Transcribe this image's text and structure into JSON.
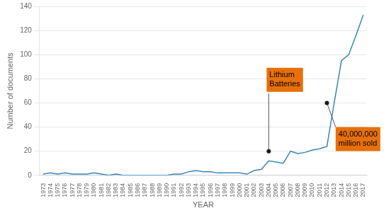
{
  "chart_data": {
    "type": "line",
    "x": [
      1973,
      1974,
      1975,
      1976,
      1977,
      1978,
      1979,
      1980,
      1981,
      1982,
      1983,
      1984,
      1985,
      1986,
      1987,
      1988,
      1989,
      1990,
      1991,
      1992,
      1993,
      1994,
      1995,
      1996,
      1997,
      1998,
      1999,
      2000,
      2001,
      2002,
      2003,
      2004,
      2005,
      2006,
      2007,
      2008,
      2009,
      2010,
      2011,
      2012,
      2013,
      2014,
      2015,
      2016,
      2017
    ],
    "values": [
      1,
      2,
      1,
      2,
      1,
      1,
      1,
      2,
      1,
      0,
      1,
      0,
      0,
      0,
      0,
      0,
      0,
      0,
      1,
      1,
      3,
      4,
      3,
      3,
      2,
      2,
      2,
      2,
      1,
      4,
      5,
      12,
      11,
      10,
      20,
      18,
      19,
      21,
      22,
      24,
      60,
      95,
      100,
      116,
      133
    ],
    "color": "#3A86B8",
    "xlabel": "YEAR",
    "ylabel": "Number of documents",
    "xlim": [
      1972.5,
      2017.5
    ],
    "xticks": [
      1973,
      1974,
      1975,
      1976,
      1977,
      1978,
      1979,
      1980,
      1981,
      1982,
      1983,
      1984,
      1985,
      1986,
      1987,
      1988,
      1989,
      1990,
      1991,
      1992,
      1993,
      1994,
      1995,
      1996,
      1997,
      1998,
      1999,
      2000,
      2001,
      2002,
      2003,
      2004,
      2005,
      2006,
      2007,
      2008,
      2009,
      2010,
      2011,
      2012,
      2013,
      2014,
      2015,
      2016,
      2017
    ],
    "ylim": [
      0,
      140
    ],
    "yticks": [
      0,
      20,
      40,
      60,
      80,
      100,
      120,
      140
    ],
    "grid": true,
    "annotations": [
      {
        "text": "Lithium\nBatteries",
        "x": 2004,
        "y": 20,
        "text_x": 2004,
        "text_y": 68,
        "color": "#E8700A",
        "marker_color": "#1a1a1a"
      },
      {
        "text": "40,000,000\nmillion sold",
        "x": 2012,
        "y": 60,
        "text_x": 2013.2,
        "text_y": 40,
        "color": "#E8700A",
        "marker_color": "#1a1a1a"
      }
    ]
  }
}
